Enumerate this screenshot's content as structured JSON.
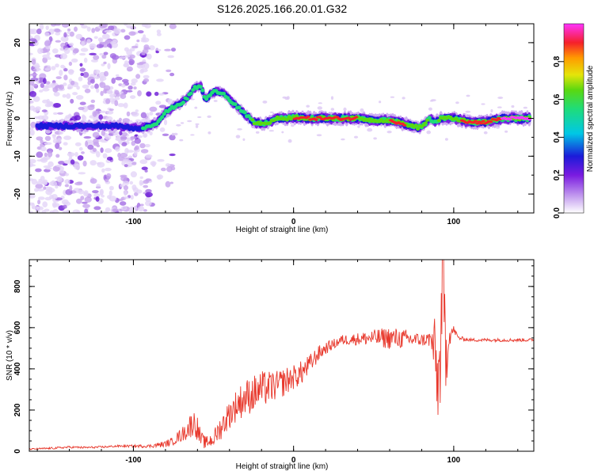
{
  "figure_title": "S126.2025.166.20.01.G32",
  "chart_data": [
    {
      "type": "heatmap",
      "title": "S126.2025.166.20.01.G32",
      "xlabel": "Height of straight line (km)",
      "ylabel": "Frequency (Hz)",
      "xlim": [
        -165,
        150
      ],
      "ylim": [
        -25,
        25
      ],
      "x_ticks": [
        -100,
        0,
        100
      ],
      "y_ticks": [
        -20,
        -10,
        0,
        10,
        20
      ],
      "x_tick_labels": [
        "-100",
        "0",
        "100"
      ],
      "y_tick_labels": [
        "-20",
        "-10",
        "0",
        "10",
        "20"
      ],
      "grid": false,
      "colorbar": {
        "label": "Normalized spectral amplitude",
        "range": [
          0,
          1
        ],
        "ticks": [
          "0.0",
          "0.2",
          "0.4",
          "0.6",
          "0.8"
        ],
        "colormap": "purple-blue-cyan-green-yellow-red-magenta"
      },
      "ridge": {
        "x": [
          -160,
          -150,
          -140,
          -130,
          -120,
          -110,
          -100,
          -95,
          -90,
          -85,
          -80,
          -75,
          -70,
          -65,
          -62,
          -58,
          -55,
          -50,
          -45,
          -40,
          -35,
          -30,
          -25,
          -20,
          -15,
          -10,
          -5,
          0,
          10,
          20,
          30,
          40,
          50,
          60,
          70,
          78,
          82,
          85,
          88,
          92,
          96,
          100,
          110,
          120,
          130,
          140,
          148
        ],
        "y": [
          -2,
          -2,
          -2,
          -2,
          -2,
          -2,
          -2.5,
          -2.5,
          -2,
          -1,
          1.5,
          3,
          4,
          6,
          8,
          8.5,
          5,
          7,
          7,
          5,
          3,
          1,
          -1,
          -1.5,
          -1,
          0,
          0,
          0.3,
          0,
          0,
          0,
          0,
          -0.5,
          -0.5,
          -1.5,
          -2.5,
          -1.5,
          0,
          -1,
          0,
          0,
          0,
          -1,
          -1,
          0,
          0,
          0
        ],
        "amplitude": [
          0.3,
          0.3,
          0.3,
          0.3,
          0.3,
          0.3,
          0.35,
          0.4,
          0.45,
          0.5,
          0.5,
          0.45,
          0.4,
          0.4,
          0.45,
          0.45,
          0.4,
          0.45,
          0.45,
          0.45,
          0.4,
          0.45,
          0.6,
          0.65,
          0.6,
          0.7,
          0.75,
          0.8,
          0.8,
          0.85,
          0.85,
          0.8,
          0.75,
          0.8,
          0.8,
          0.7,
          0.6,
          0.55,
          0.5,
          0.6,
          0.7,
          0.75,
          0.85,
          0.85,
          0.85,
          0.9,
          0.95
        ]
      },
      "noise_extent_x": [
        -165,
        -90
      ]
    },
    {
      "type": "line",
      "xlabel": "Height of straight line (km)",
      "ylabel": "SNR (10 * v/v)",
      "xlim": [
        -165,
        150
      ],
      "ylim": [
        0,
        930
      ],
      "x_ticks": [
        -100,
        0,
        100
      ],
      "y_ticks": [
        0,
        200,
        400,
        600,
        800
      ],
      "x_tick_labels": [
        "-100",
        "0",
        "100"
      ],
      "y_tick_labels": [
        "0",
        "200",
        "400",
        "600",
        "800"
      ],
      "grid": false,
      "series": [
        {
          "color": "#e8392d",
          "x": [
            -165,
            -150,
            -140,
            -130,
            -120,
            -110,
            -100,
            -90,
            -85,
            -80,
            -75,
            -72,
            -68,
            -65,
            -62,
            -60,
            -58,
            -55,
            -50,
            -45,
            -40,
            -35,
            -30,
            -25,
            -20,
            -15,
            -10,
            -5,
            0,
            5,
            10,
            15,
            20,
            25,
            30,
            40,
            50,
            60,
            70,
            80,
            85,
            88,
            90,
            92,
            93,
            95,
            97,
            100,
            103,
            110,
            120,
            130,
            140,
            150
          ],
          "y": [
            10,
            15,
            20,
            18,
            20,
            25,
            25,
            25,
            30,
            35,
            50,
            70,
            90,
            120,
            140,
            110,
            60,
            40,
            60,
            120,
            180,
            230,
            260,
            280,
            300,
            310,
            320,
            340,
            360,
            380,
            420,
            470,
            500,
            520,
            540,
            545,
            550,
            550,
            545,
            540,
            545,
            500,
            320,
            480,
            900,
            460,
            560,
            590,
            550,
            540,
            540,
            540,
            540,
            540
          ],
          "jitter": [
            3,
            5,
            5,
            5,
            5,
            5,
            6,
            8,
            12,
            15,
            20,
            30,
            40,
            60,
            60,
            60,
            40,
            30,
            40,
            60,
            70,
            80,
            90,
            90,
            90,
            80,
            70,
            70,
            60,
            60,
            50,
            40,
            30,
            25,
            25,
            30,
            40,
            55,
            45,
            30,
            40,
            150,
            200,
            250,
            250,
            200,
            60,
            20,
            10,
            8,
            8,
            8,
            8,
            8
          ]
        }
      ]
    }
  ]
}
